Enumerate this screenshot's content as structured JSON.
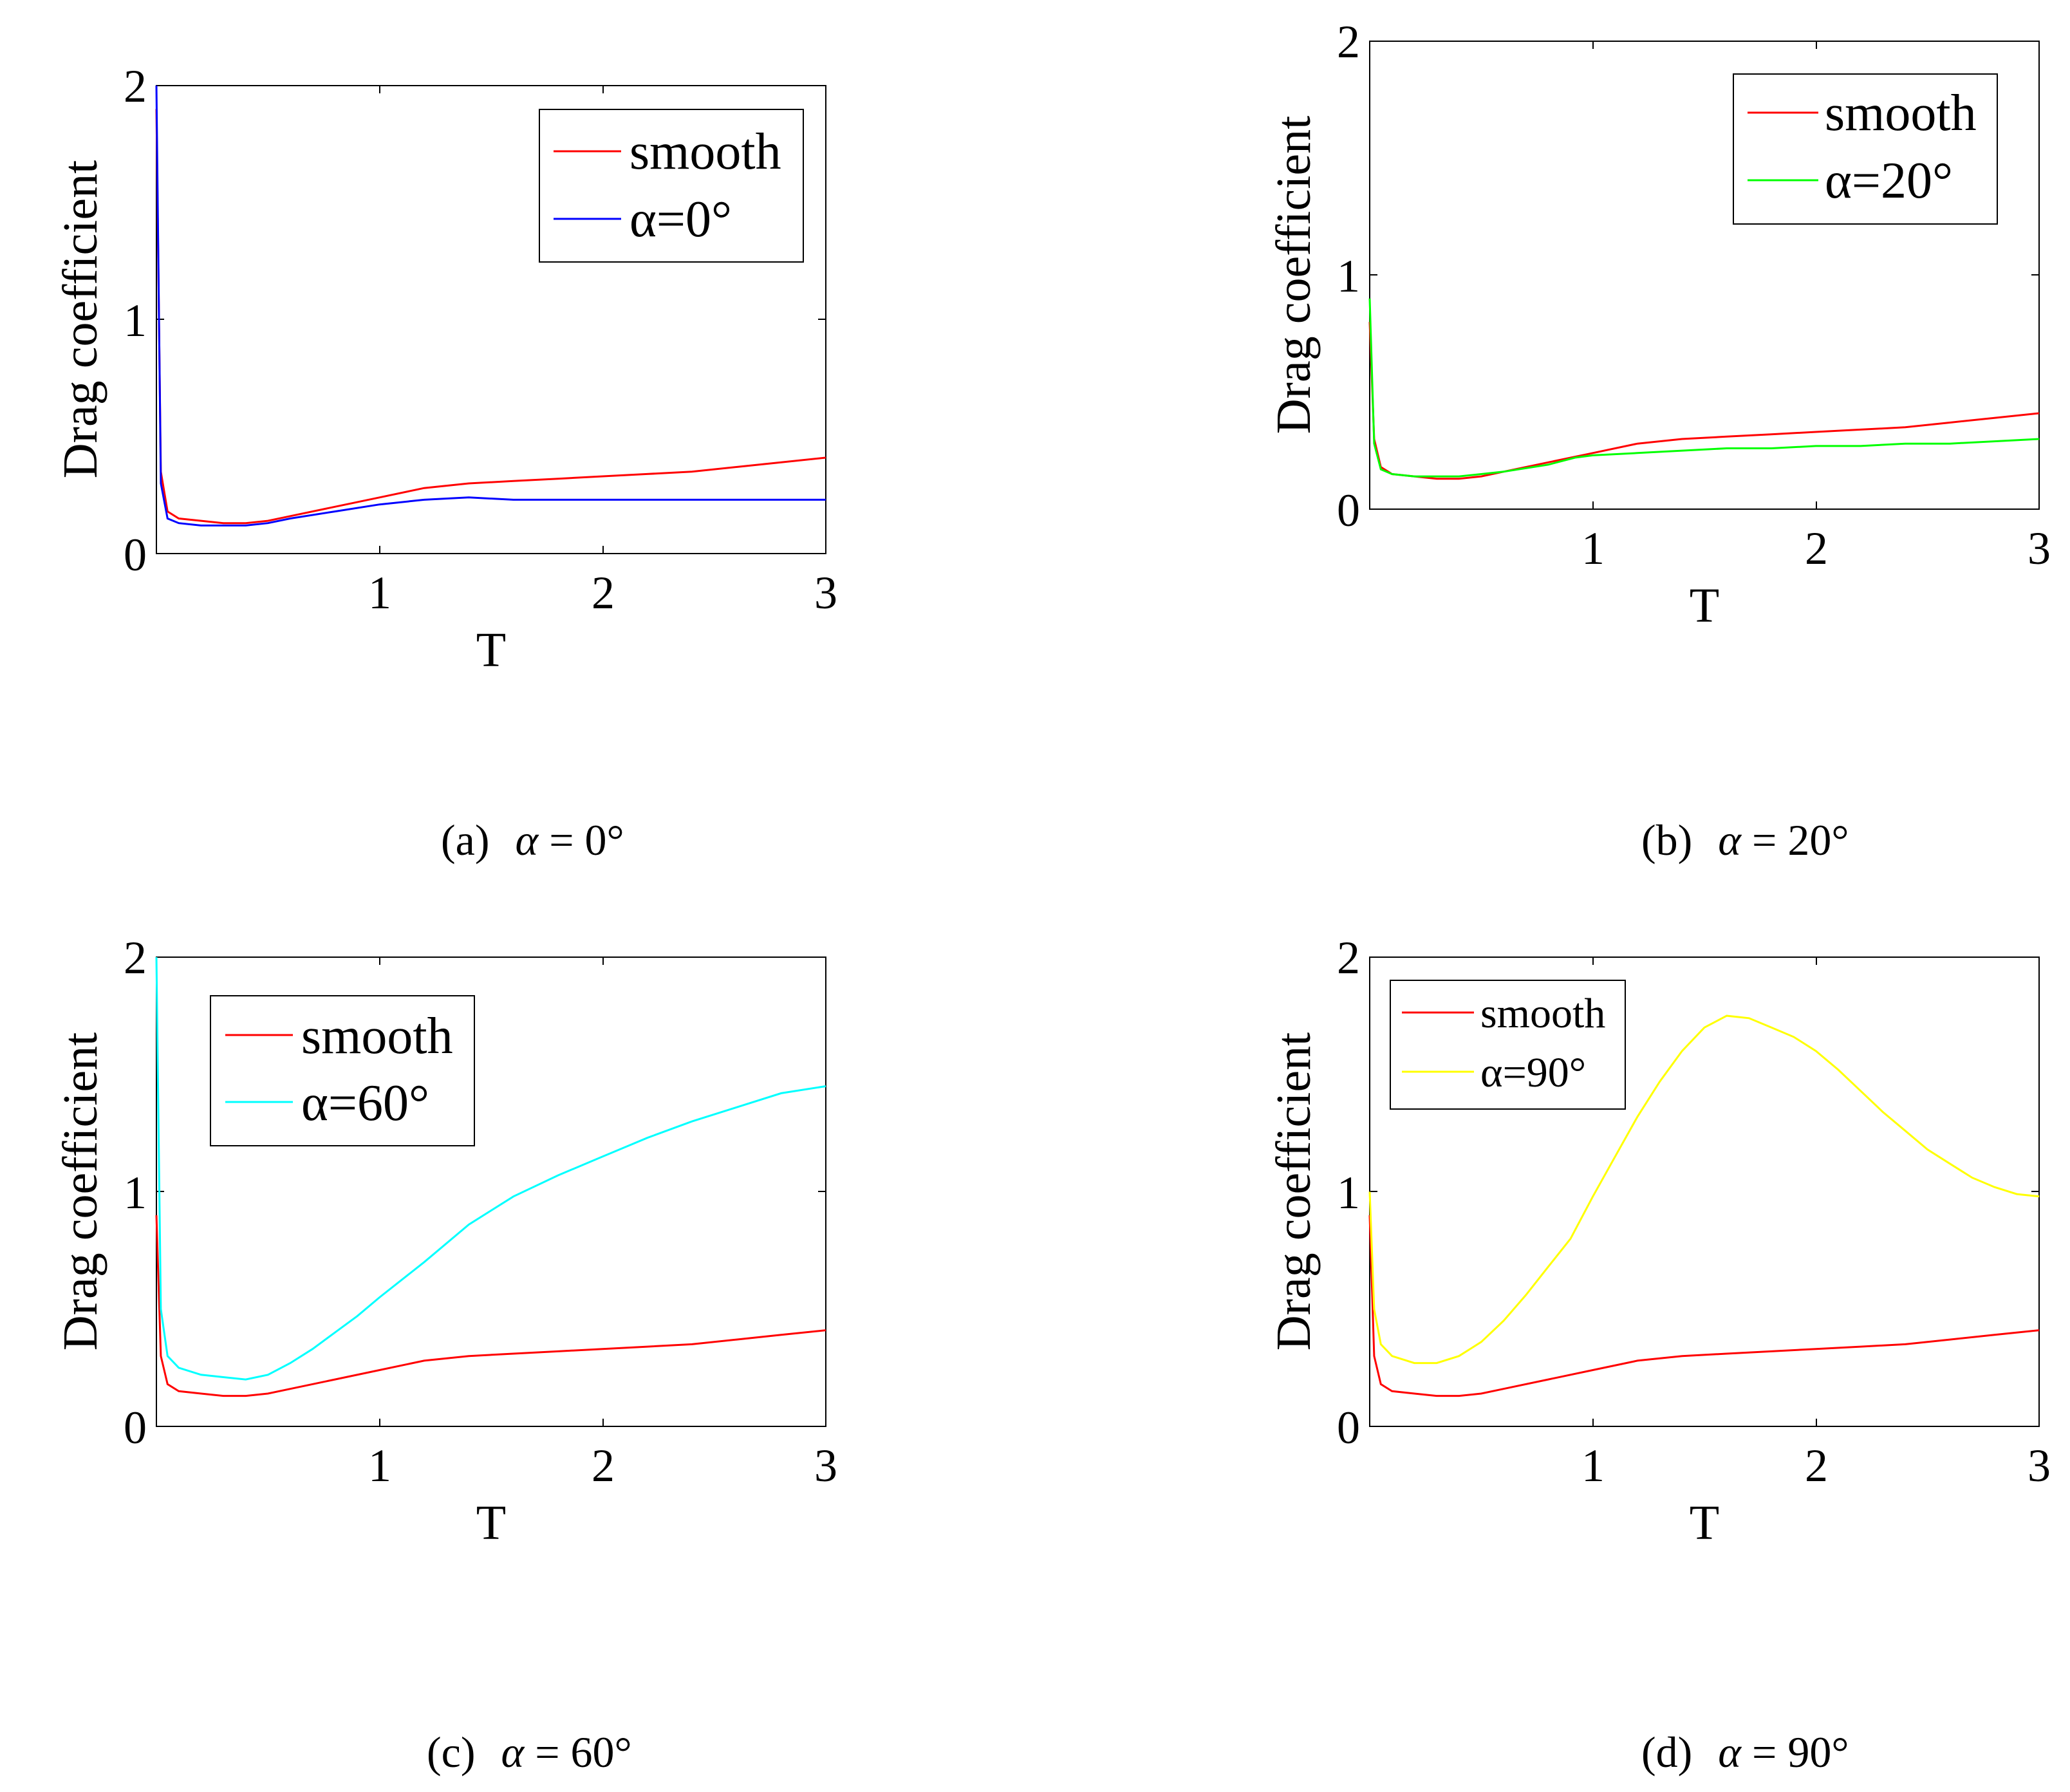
{
  "figure": {
    "captions": [
      {
        "label": "(a)",
        "symbol": "α",
        "rest": " = 0°"
      },
      {
        "label": "(b)",
        "symbol": "α",
        "rest": " = 20°"
      },
      {
        "label": "(c)",
        "symbol": "α",
        "rest": " = 60°"
      },
      {
        "label": "(d)",
        "symbol": "α",
        "rest": " = 90°"
      }
    ]
  },
  "chart_data": [
    {
      "type": "line",
      "title": "",
      "xlabel": "T",
      "ylabel": "Drag coefficient",
      "xlim": [
        0,
        3
      ],
      "ylim": [
        0,
        2
      ],
      "xticks": [
        "1",
        "2",
        "3"
      ],
      "yticks": [
        "0",
        "1",
        "2"
      ],
      "grid": false,
      "legend": "top-right",
      "series": [
        {
          "name": "smooth",
          "color": "#ff0000",
          "x": [
            0.0,
            0.02,
            0.05,
            0.1,
            0.2,
            0.3,
            0.4,
            0.5,
            0.6,
            0.8,
            1.0,
            1.2,
            1.4,
            1.6,
            1.8,
            2.0,
            2.2,
            2.4,
            2.6,
            2.8,
            3.0
          ],
          "y": [
            1.9,
            0.35,
            0.18,
            0.15,
            0.14,
            0.13,
            0.13,
            0.14,
            0.16,
            0.2,
            0.24,
            0.28,
            0.3,
            0.31,
            0.32,
            0.33,
            0.34,
            0.35,
            0.37,
            0.39,
            0.41
          ]
        },
        {
          "name": "α=0°",
          "color": "#0000ff",
          "x": [
            0.0,
            0.02,
            0.05,
            0.1,
            0.2,
            0.3,
            0.4,
            0.5,
            0.6,
            0.8,
            1.0,
            1.2,
            1.4,
            1.6,
            1.8,
            2.0,
            2.2,
            2.4,
            2.6,
            2.8,
            3.0
          ],
          "y": [
            2.0,
            0.3,
            0.15,
            0.13,
            0.12,
            0.12,
            0.12,
            0.13,
            0.15,
            0.18,
            0.21,
            0.23,
            0.24,
            0.23,
            0.23,
            0.23,
            0.23,
            0.23,
            0.23,
            0.23,
            0.23
          ]
        }
      ]
    },
    {
      "type": "line",
      "title": "",
      "xlabel": "T",
      "ylabel": "Drag coefficient",
      "xlim": [
        0,
        3
      ],
      "ylim": [
        0,
        2
      ],
      "xticks": [
        "1",
        "2",
        "3"
      ],
      "yticks": [
        "0",
        "1",
        "2"
      ],
      "grid": false,
      "legend": "top-right",
      "series": [
        {
          "name": "smooth",
          "color": "#ff0000",
          "x": [
            0.0,
            0.02,
            0.05,
            0.1,
            0.2,
            0.3,
            0.4,
            0.5,
            0.6,
            0.8,
            1.0,
            1.2,
            1.4,
            1.6,
            1.8,
            2.0,
            2.2,
            2.4,
            2.6,
            2.8,
            3.0
          ],
          "y": [
            0.8,
            0.3,
            0.18,
            0.15,
            0.14,
            0.13,
            0.13,
            0.14,
            0.16,
            0.2,
            0.24,
            0.28,
            0.3,
            0.31,
            0.32,
            0.33,
            0.34,
            0.35,
            0.37,
            0.39,
            0.41
          ]
        },
        {
          "name": "α=20°",
          "color": "#00ff00",
          "x": [
            0.0,
            0.02,
            0.05,
            0.1,
            0.2,
            0.3,
            0.4,
            0.5,
            0.6,
            0.8,
            0.92,
            1.0,
            1.2,
            1.4,
            1.6,
            1.8,
            2.0,
            2.2,
            2.4,
            2.6,
            2.8,
            3.0
          ],
          "y": [
            0.9,
            0.28,
            0.17,
            0.15,
            0.14,
            0.14,
            0.14,
            0.15,
            0.16,
            0.19,
            0.22,
            0.23,
            0.24,
            0.25,
            0.26,
            0.26,
            0.27,
            0.27,
            0.28,
            0.28,
            0.29,
            0.3
          ]
        }
      ]
    },
    {
      "type": "line",
      "title": "",
      "xlabel": "T",
      "ylabel": "Drag coefficient",
      "xlim": [
        0,
        3
      ],
      "ylim": [
        0,
        2
      ],
      "xticks": [
        "1",
        "2",
        "3"
      ],
      "yticks": [
        "0",
        "1",
        "2"
      ],
      "grid": false,
      "legend": "top-left",
      "series": [
        {
          "name": "smooth",
          "color": "#ff0000",
          "x": [
            0.0,
            0.02,
            0.05,
            0.1,
            0.2,
            0.3,
            0.4,
            0.5,
            0.6,
            0.8,
            1.0,
            1.2,
            1.4,
            1.6,
            1.8,
            2.0,
            2.2,
            2.4,
            2.6,
            2.8,
            3.0
          ],
          "y": [
            0.9,
            0.3,
            0.18,
            0.15,
            0.14,
            0.13,
            0.13,
            0.14,
            0.16,
            0.2,
            0.24,
            0.28,
            0.3,
            0.31,
            0.32,
            0.33,
            0.34,
            0.35,
            0.37,
            0.39,
            0.41
          ]
        },
        {
          "name": "α=60°",
          "color": "#00ffff",
          "x": [
            0.0,
            0.02,
            0.05,
            0.1,
            0.2,
            0.3,
            0.4,
            0.5,
            0.6,
            0.7,
            0.8,
            0.9,
            1.0,
            1.2,
            1.4,
            1.6,
            1.8,
            2.0,
            2.2,
            2.4,
            2.6,
            2.8,
            3.0
          ],
          "y": [
            2.0,
            0.5,
            0.3,
            0.25,
            0.22,
            0.21,
            0.2,
            0.22,
            0.27,
            0.33,
            0.4,
            0.47,
            0.55,
            0.7,
            0.86,
            0.98,
            1.07,
            1.15,
            1.23,
            1.3,
            1.36,
            1.42,
            1.45
          ]
        }
      ]
    },
    {
      "type": "line",
      "title": "",
      "xlabel": "T",
      "ylabel": "Drag coefficient",
      "xlim": [
        0,
        3
      ],
      "ylim": [
        0,
        2
      ],
      "xticks": [
        "1",
        "2",
        "3"
      ],
      "yticks": [
        "0",
        "1",
        "2"
      ],
      "grid": false,
      "legend": "top-left",
      "series": [
        {
          "name": "smooth",
          "color": "#ff0000",
          "x": [
            0.0,
            0.02,
            0.05,
            0.1,
            0.2,
            0.3,
            0.4,
            0.5,
            0.6,
            0.8,
            1.0,
            1.2,
            1.4,
            1.6,
            1.8,
            2.0,
            2.2,
            2.4,
            2.6,
            2.8,
            3.0
          ],
          "y": [
            0.9,
            0.3,
            0.18,
            0.15,
            0.14,
            0.13,
            0.13,
            0.14,
            0.16,
            0.2,
            0.24,
            0.28,
            0.3,
            0.31,
            0.32,
            0.33,
            0.34,
            0.35,
            0.37,
            0.39,
            0.41
          ]
        },
        {
          "name": "α=90°",
          "color": "#ffff00",
          "x": [
            0.0,
            0.02,
            0.05,
            0.1,
            0.2,
            0.3,
            0.4,
            0.5,
            0.6,
            0.7,
            0.8,
            0.9,
            1.0,
            1.1,
            1.2,
            1.3,
            1.4,
            1.5,
            1.6,
            1.7,
            1.8,
            1.9,
            2.0,
            2.1,
            2.2,
            2.3,
            2.4,
            2.5,
            2.6,
            2.7,
            2.8,
            2.9,
            3.0
          ],
          "y": [
            1.0,
            0.5,
            0.35,
            0.3,
            0.27,
            0.27,
            0.3,
            0.36,
            0.45,
            0.56,
            0.68,
            0.8,
            0.98,
            1.15,
            1.32,
            1.47,
            1.6,
            1.7,
            1.75,
            1.74,
            1.7,
            1.66,
            1.6,
            1.52,
            1.43,
            1.34,
            1.26,
            1.18,
            1.12,
            1.06,
            1.02,
            0.99,
            0.98
          ]
        }
      ]
    }
  ]
}
